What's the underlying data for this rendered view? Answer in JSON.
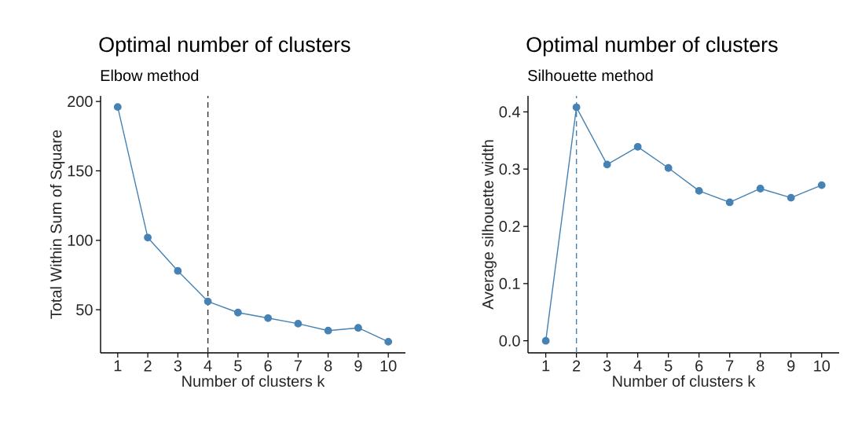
{
  "chart_data": [
    {
      "type": "line",
      "title": "Optimal number of clusters",
      "subtitle": "Elbow method",
      "xlabel": "Number of clusters k",
      "ylabel": "Total Within Sum of Square",
      "x": [
        1,
        2,
        3,
        4,
        5,
        6,
        7,
        8,
        9,
        10
      ],
      "series": [
        {
          "color": "#4682b4",
          "values": [
            196,
            102,
            78,
            56,
            48,
            44,
            40,
            35,
            37,
            27
          ]
        }
      ],
      "xlim": [
        0.43,
        10.57
      ],
      "ylim": [
        19,
        204
      ],
      "xticks": [
        1,
        2,
        3,
        4,
        5,
        6,
        7,
        8,
        9,
        10
      ],
      "yticks": [
        50,
        100,
        150,
        200
      ],
      "ref_lines": [
        {
          "axis": "x",
          "value": 4,
          "color": "#333333",
          "line_style": "dashed"
        }
      ],
      "marker": "circle",
      "line_style": "solid",
      "grid": false
    },
    {
      "type": "line",
      "title": "Optimal number of clusters",
      "subtitle": "Silhouette method",
      "xlabel": "Number of clusters k",
      "ylabel": "Average silhouette width",
      "x": [
        1,
        2,
        3,
        4,
        5,
        6,
        7,
        8,
        9,
        10
      ],
      "series": [
        {
          "color": "#4682b4",
          "values": [
            0,
            0.408,
            0.308,
            0.339,
            0.302,
            0.262,
            0.242,
            0.266,
            0.25,
            0.272
          ]
        }
      ],
      "xlim": [
        0.42,
        10.57
      ],
      "ylim": [
        -0.021,
        0.428
      ],
      "xticks": [
        1,
        2,
        3,
        4,
        5,
        6,
        7,
        8,
        9,
        10
      ],
      "yticks": [
        {
          "value": 0,
          "label": "0.0"
        },
        {
          "value": 0.1,
          "label": "0.1"
        },
        {
          "value": 0.2,
          "label": "0.2"
        },
        {
          "value": 0.3,
          "label": "0.3"
        },
        {
          "value": 0.4,
          "label": "0.4"
        }
      ],
      "ref_lines": [
        {
          "axis": "x",
          "value": 2,
          "color": "#4682b4",
          "line_style": "dashed"
        }
      ],
      "marker": "circle",
      "line_style": "solid",
      "grid": false
    }
  ]
}
